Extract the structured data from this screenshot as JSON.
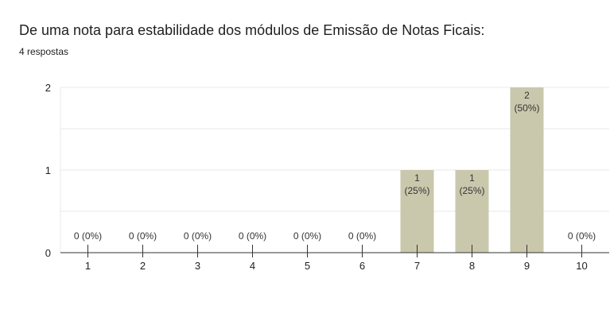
{
  "header": {
    "title": "De uma nota para estabilidade dos módulos de Emissão de Notas Ficais:",
    "responses": "4 respostas"
  },
  "colors": {
    "bar": "#c9c8ad",
    "grid": "#e8e8e8",
    "axis": "#333333",
    "text": "#202124",
    "label": "#333333"
  },
  "chart_data": {
    "type": "bar",
    "categories": [
      "1",
      "2",
      "3",
      "4",
      "5",
      "6",
      "7",
      "8",
      "9",
      "10"
    ],
    "values": [
      0,
      0,
      0,
      0,
      0,
      0,
      1,
      1,
      2,
      0
    ],
    "percents": [
      "0%",
      "0%",
      "0%",
      "0%",
      "0%",
      "0%",
      "25%",
      "25%",
      "50%",
      "0%"
    ],
    "title": "De uma nota para estabilidade dos módulos de Emissão de Notas Ficais:",
    "xlabel": "",
    "ylabel": "",
    "ylim": [
      0,
      2
    ],
    "yticks": [
      "0",
      "1",
      "2"
    ],
    "grid": true,
    "legend": "none"
  }
}
